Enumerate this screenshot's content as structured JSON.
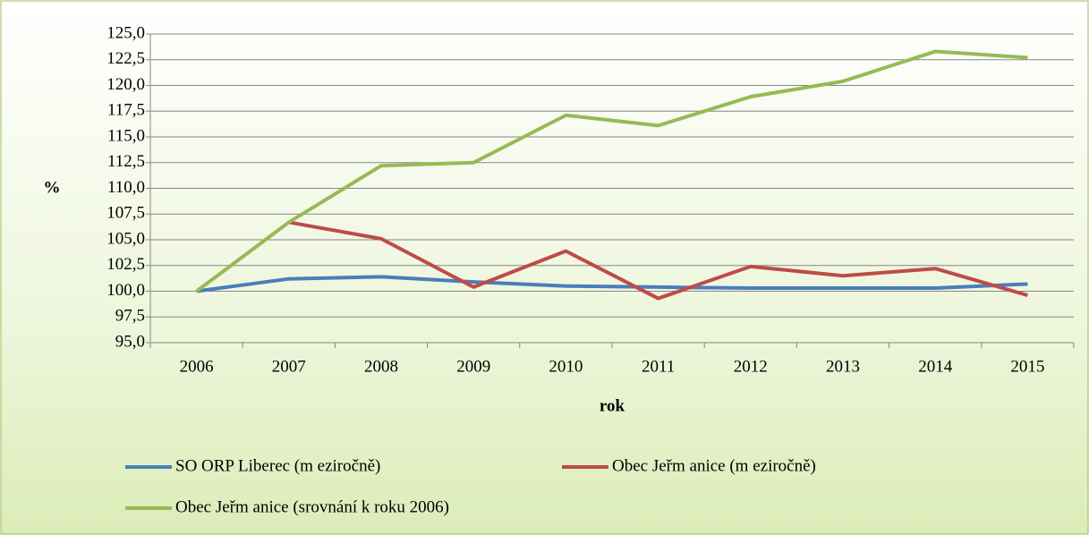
{
  "chart_data": {
    "type": "line",
    "x_label": "rok",
    "y_label": "%",
    "categories": [
      "2006",
      "2007",
      "2008",
      "2009",
      "2010",
      "2011",
      "2012",
      "2013",
      "2014",
      "2015"
    ],
    "series": [
      {
        "name": "SO ORP  Liberec (m eziročně)",
        "color": "#4a7ebb",
        "values": [
          100.0,
          101.2,
          101.4,
          100.9,
          100.5,
          100.4,
          100.3,
          100.3,
          100.3,
          100.7
        ]
      },
      {
        "name": "Obec Jeřm anice (m eziročně)",
        "color": "#be4b48",
        "values": [
          null,
          106.7,
          105.1,
          100.4,
          103.9,
          99.3,
          102.4,
          101.5,
          102.2,
          99.6
        ]
      },
      {
        "name": "Obec Jeřm anice (srovnání k roku 2006)",
        "color": "#98b954",
        "values": [
          100.0,
          106.7,
          112.2,
          112.5,
          117.1,
          116.1,
          118.9,
          120.4,
          123.3,
          122.7
        ]
      }
    ],
    "ylim": [
      95,
      125
    ],
    "yticks": [
      {
        "value": 95,
        "label": "95,0"
      },
      {
        "value": 97.5,
        "label": "97,5"
      },
      {
        "value": 100,
        "label": "100,0"
      },
      {
        "value": 102.5,
        "label": "102,5"
      },
      {
        "value": 105,
        "label": "105,0"
      },
      {
        "value": 107.5,
        "label": "107,5"
      },
      {
        "value": 110,
        "label": "110,0"
      },
      {
        "value": 112.5,
        "label": "112,5"
      },
      {
        "value": 115,
        "label": "115,0"
      },
      {
        "value": 117.5,
        "label": "117,5"
      },
      {
        "value": 120,
        "label": "120,0"
      },
      {
        "value": 122.5,
        "label": "122,5"
      },
      {
        "value": 125,
        "label": "125,0"
      }
    ],
    "grid": true,
    "legend": "bottom"
  }
}
